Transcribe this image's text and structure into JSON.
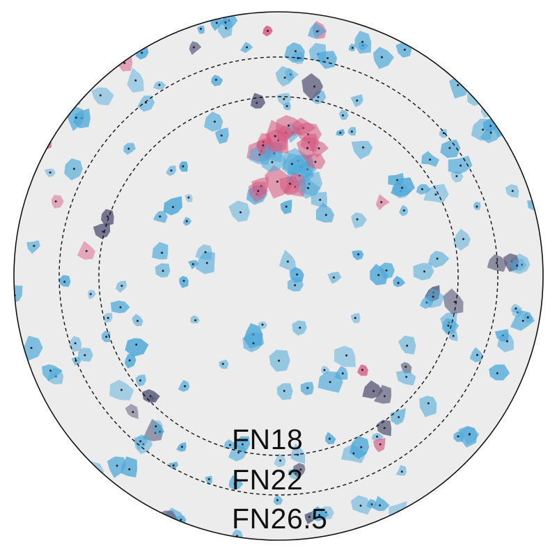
{
  "diagram": {
    "labels": {
      "fn18": "FN18",
      "fn22": "FN22",
      "fn26_5": "FN26.5"
    },
    "field_numbers": [
      18,
      22,
      26.5
    ],
    "colors": {
      "background": "#ececec",
      "cell_blue": "#4fa9d9",
      "cell_pink": "#d5577f",
      "cell_dark": "#5a5a7a",
      "outline": "#111111"
    }
  }
}
